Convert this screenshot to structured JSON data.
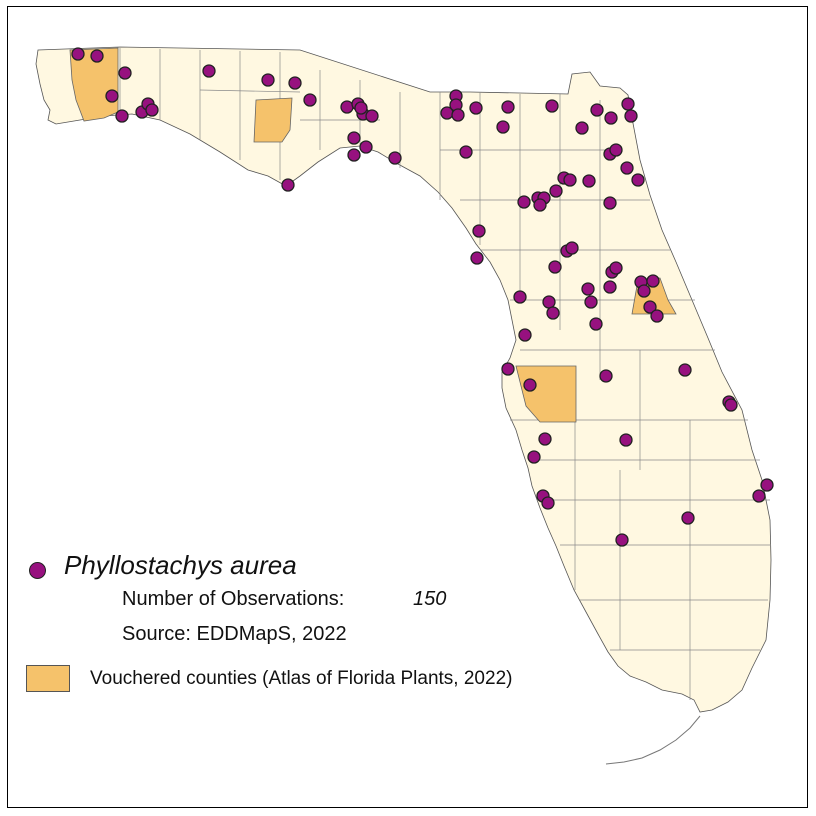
{
  "legend": {
    "species": "Phyllostachys aurea",
    "observations_label": "Number of Observations:",
    "observations_value": "150",
    "source": "Source: EDDMapS, 2022",
    "vouchered_label": "Vouchered counties (Atlas of Florida Plants, 2022)"
  },
  "colors": {
    "land": "#fff8e1",
    "county_line": "#8a8a8a",
    "vouchered": "#f5c26b",
    "observation": "#97117f",
    "outline": "#555555"
  },
  "vouchered_counties": [
    "Escambia",
    "Jackson",
    "Volusia",
    "Hillsborough"
  ]
}
